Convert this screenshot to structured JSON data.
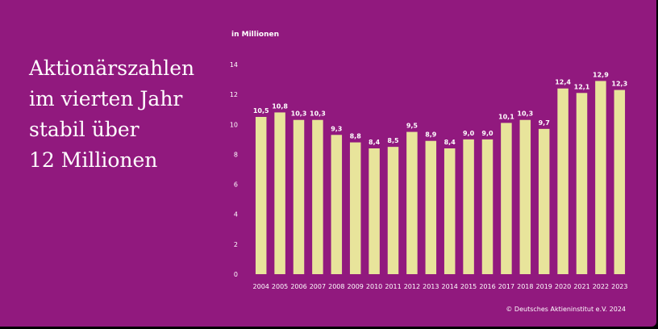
{
  "headline": [
    "Aktionärszahlen",
    "im vierten Jahr",
    "stabil über",
    "12 Millionen"
  ],
  "copyright": "© Deutsches Aktieninstitut e.V. 2024",
  "colors": {
    "background": "#91197e",
    "bar": "#e8e49b",
    "text": "#ffffff"
  },
  "chart_data": {
    "type": "bar",
    "unit_label": "in Millionen",
    "categories": [
      "2004",
      "2005",
      "2006",
      "2007",
      "2008",
      "2009",
      "2010",
      "2011",
      "2012",
      "2013",
      "2014",
      "2015",
      "2016",
      "2017",
      "2018",
      "2019",
      "2020",
      "2021",
      "2022",
      "2023"
    ],
    "values": [
      10.5,
      10.8,
      10.3,
      10.3,
      9.3,
      8.8,
      8.4,
      8.5,
      9.5,
      8.9,
      8.4,
      9.0,
      9.0,
      10.1,
      10.3,
      9.7,
      12.4,
      12.1,
      12.9,
      12.3
    ],
    "value_labels": [
      "10,5",
      "10,8",
      "10,3",
      "10,3",
      "9,3",
      "8,8",
      "8,4",
      "8,5",
      "9,5",
      "8,9",
      "8,4",
      "9,0",
      "9,0",
      "10,1",
      "10,3",
      "9,7",
      "12,4",
      "12,1",
      "12,9",
      "12,3"
    ],
    "yticks": [
      0,
      2,
      4,
      6,
      8,
      10,
      12,
      14
    ],
    "ylim": [
      0,
      14
    ],
    "grid": false
  }
}
